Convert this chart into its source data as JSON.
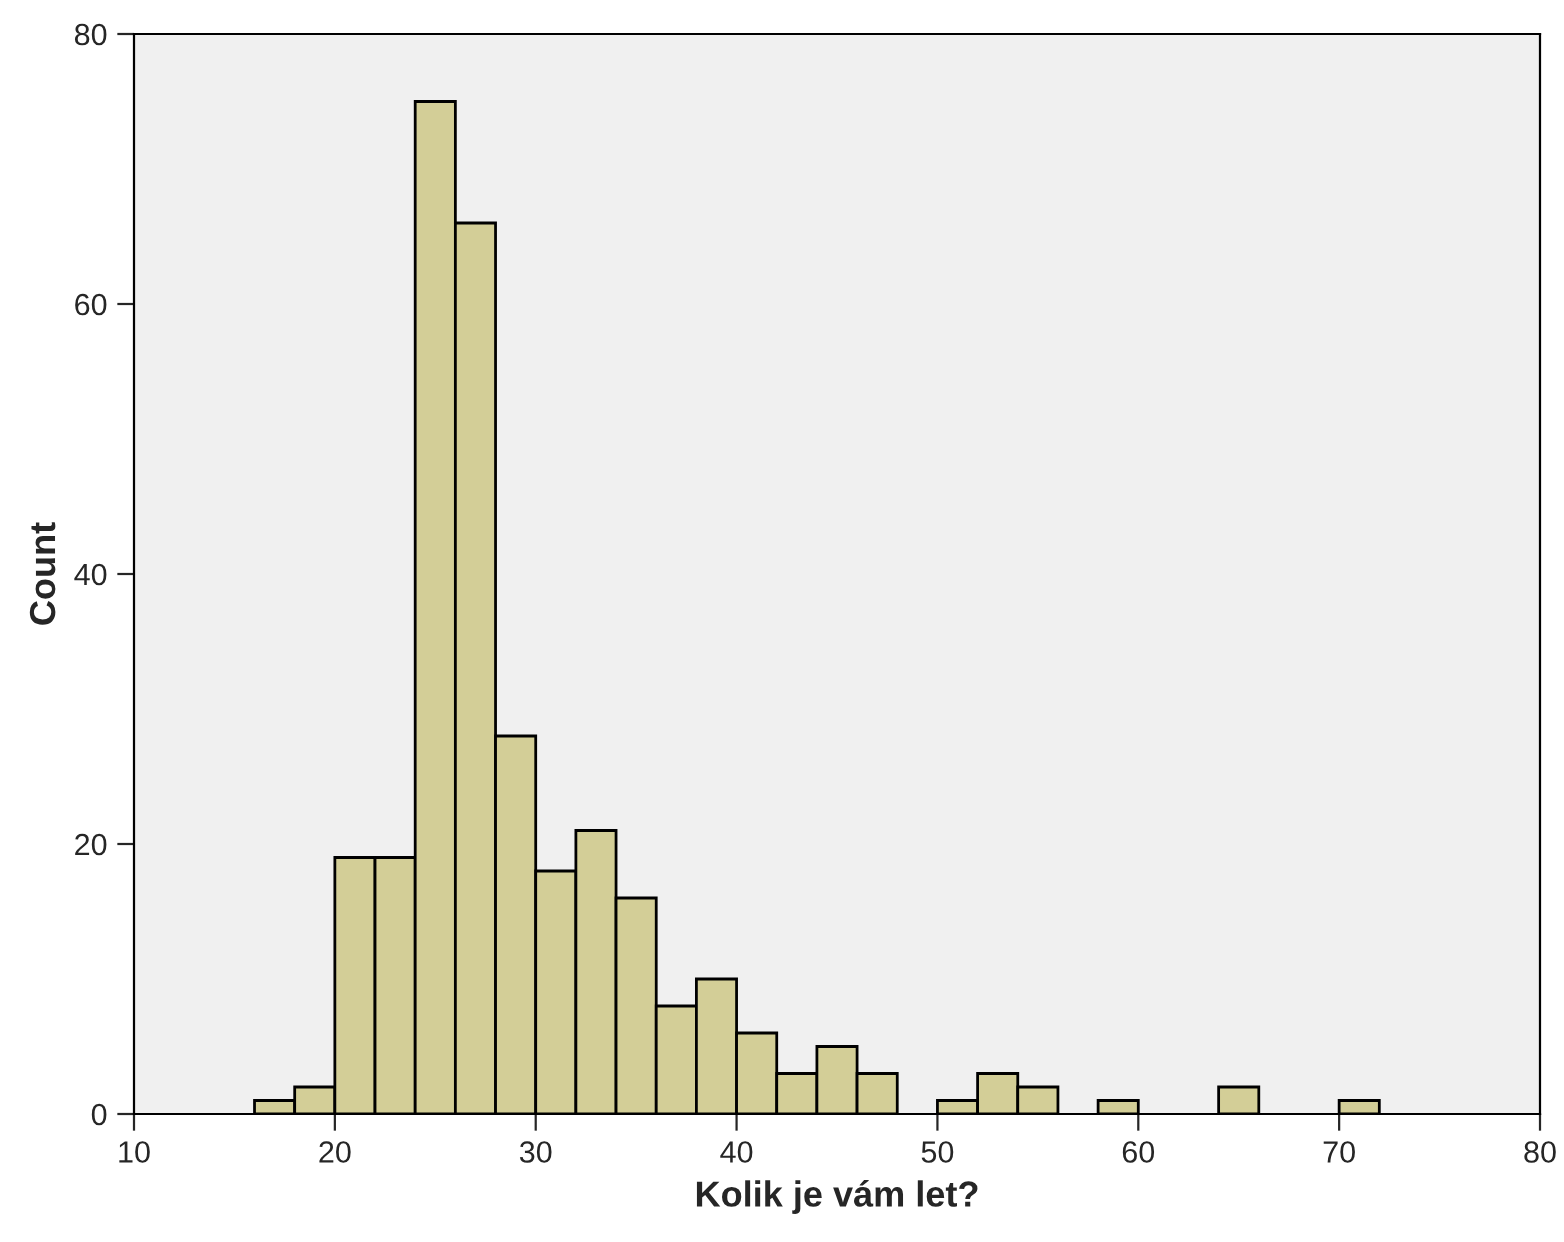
{
  "chart_data": {
    "type": "histogram",
    "xlabel": "Kolik je vám let?",
    "ylabel": "Count",
    "bins": [
      16,
      18,
      20,
      22,
      24,
      26,
      28,
      30,
      32,
      34,
      36,
      38,
      40,
      42,
      44,
      46,
      48,
      50,
      52,
      54,
      56,
      58,
      60,
      62,
      64,
      66,
      68,
      70,
      72
    ],
    "values": [
      1,
      2,
      19,
      19,
      75,
      66,
      28,
      18,
      21,
      16,
      8,
      10,
      6,
      3,
      5,
      3,
      0,
      1,
      3,
      2,
      0,
      1,
      0,
      0,
      2,
      0,
      0,
      1
    ],
    "color": "#d3ce97",
    "xlim": [
      10,
      80
    ],
    "xticks": [
      10,
      20,
      30,
      40,
      50,
      60,
      70,
      80
    ],
    "ylim": [
      0,
      80
    ],
    "yticks": [
      0,
      20,
      40,
      60,
      80
    ],
    "grid": false
  }
}
